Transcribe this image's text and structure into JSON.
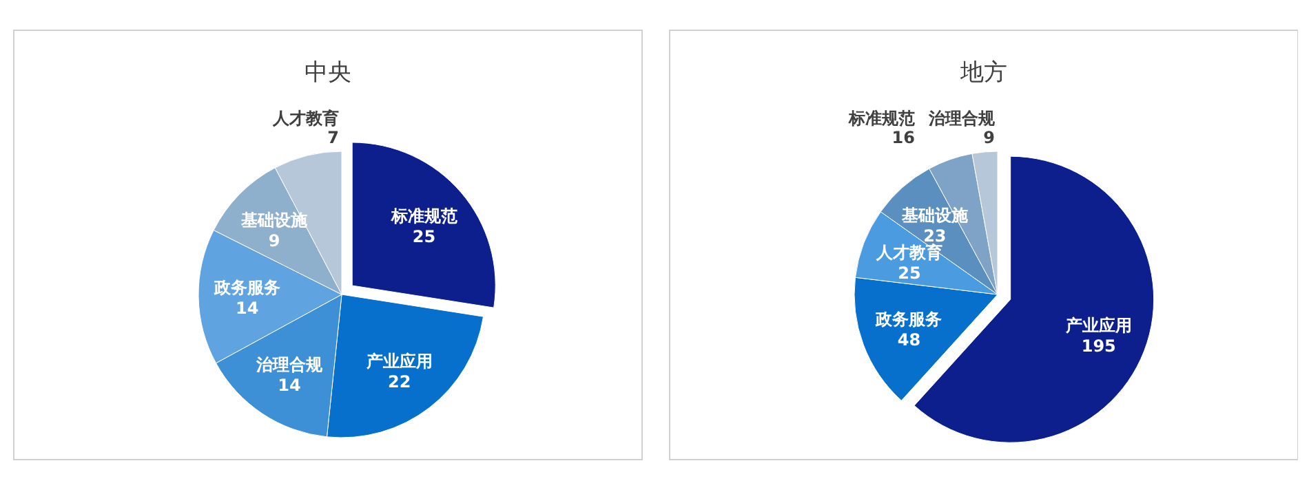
{
  "chart_data": [
    {
      "type": "pie",
      "title": "中央",
      "categories": [
        "标准规范",
        "产业应用",
        "治理合规",
        "政务服务",
        "基础设施",
        "人才教育"
      ],
      "values": [
        25,
        22,
        14,
        14,
        9,
        7
      ],
      "colors": [
        "#0d1f8c",
        "#0670cc",
        "#3d8fd6",
        "#5fa3e0",
        "#8fb0cc",
        "#b7c7da"
      ],
      "data_labels": true
    },
    {
      "type": "pie",
      "title": "地方",
      "categories": [
        "产业应用",
        "政务服务",
        "人才教育",
        "基础设施",
        "标准规范",
        "治理合规"
      ],
      "values": [
        195,
        48,
        25,
        23,
        16,
        9
      ],
      "colors": [
        "#0d1f8c",
        "#0670cc",
        "#4a9be0",
        "#5b8fc0",
        "#7fa3c6",
        "#b7c7da"
      ],
      "data_labels": true
    }
  ]
}
